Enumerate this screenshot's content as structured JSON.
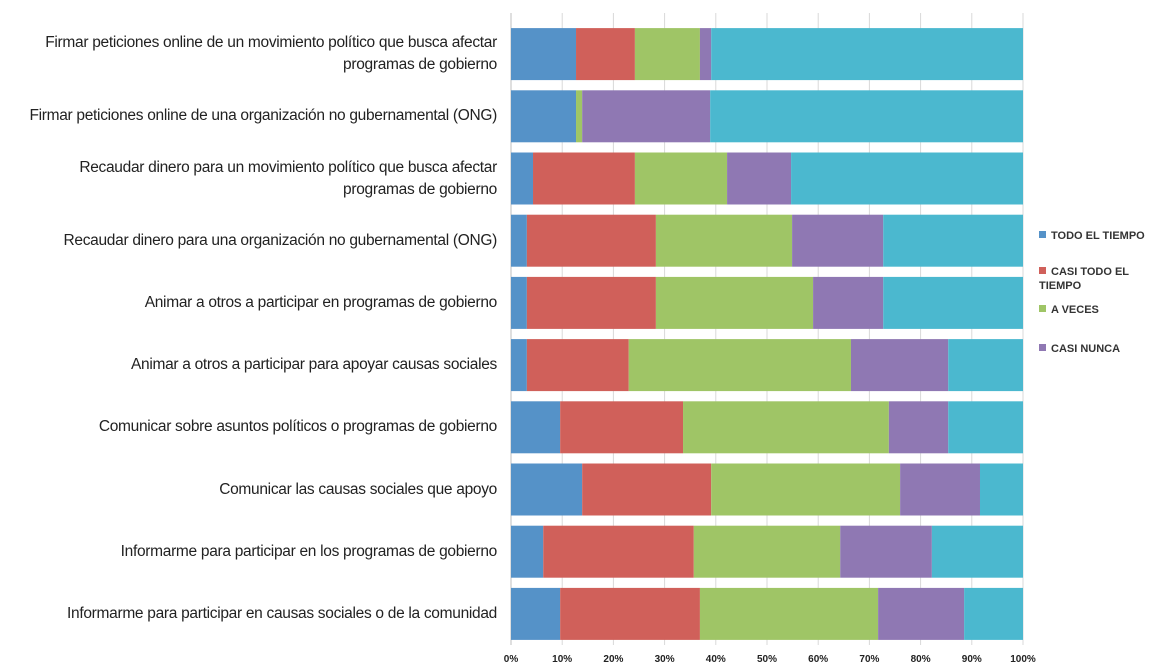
{
  "chart_data": {
    "type": "stacked_barh",
    "categories": [
      "Firmar peticiones online de un movimiento político que busca afectar programas de gobierno",
      "Firmar peticiones online de una organización no gubernamental (ONG)",
      "Recaudar dinero para un movimiento político que busca afectar programas de gobierno",
      "Recaudar dinero para una organización no gubernamental (ONG)",
      "Animar a otros a participar en programas de gobierno",
      "Animar a otros a participar para apoyar causas sociales",
      "Comunicar sobre asuntos políticos o programas de gobierno",
      "Comunicar las causas sociales que apoyo",
      "Informarme para participar en los programas de gobierno",
      "Informarme para participar en causas sociales o de la comunidad"
    ],
    "series": [
      {
        "name": "TODO EL TIEMPO",
        "color": "#5592c8",
        "values": [
          12.7,
          12.7,
          4.3,
          3.1,
          3.1,
          3.1,
          9.6,
          13.9,
          6.3,
          9.6
        ]
      },
      {
        "name": "CASI TODO EL TIEMPO",
        "color": "#d0605a",
        "values": [
          11.5,
          0,
          19.9,
          25.2,
          25.2,
          19.9,
          24,
          25.2,
          29.4,
          27.3
        ]
      },
      {
        "name": "A VECES",
        "color": "#9fc566",
        "values": [
          12.7,
          1.2,
          18,
          26.6,
          30.7,
          43.4,
          40.2,
          36.9,
          28.6,
          34.8
        ]
      },
      {
        "name": "CASI NUNCA",
        "color": "#8f78b3",
        "values": [
          2.2,
          25,
          12.5,
          17.8,
          13.7,
          19,
          11.6,
          15.6,
          17.9,
          16.8
        ]
      },
      {
        "color": "#4bb8cf",
        "values": [
          60.9,
          61.1,
          45.3,
          27.3,
          27.3,
          14.6,
          14.6,
          8.4,
          17.8,
          11.5
        ]
      }
    ],
    "xlim": [
      0,
      100
    ],
    "xticks": [
      {
        "value": 0,
        "label": "0%"
      },
      {
        "value": 10,
        "label": "10%"
      },
      {
        "value": 20,
        "label": "20%"
      },
      {
        "value": 30,
        "label": "30%"
      },
      {
        "value": 40,
        "label": "40%"
      },
      {
        "value": 50,
        "label": "50%"
      },
      {
        "value": 60,
        "label": "60%"
      },
      {
        "value": 70,
        "label": "70%"
      },
      {
        "value": 80,
        "label": "80%"
      },
      {
        "value": 90,
        "label": "90%"
      },
      {
        "value": 100,
        "label": "100%"
      }
    ],
    "grid": true,
    "legend": "right"
  }
}
